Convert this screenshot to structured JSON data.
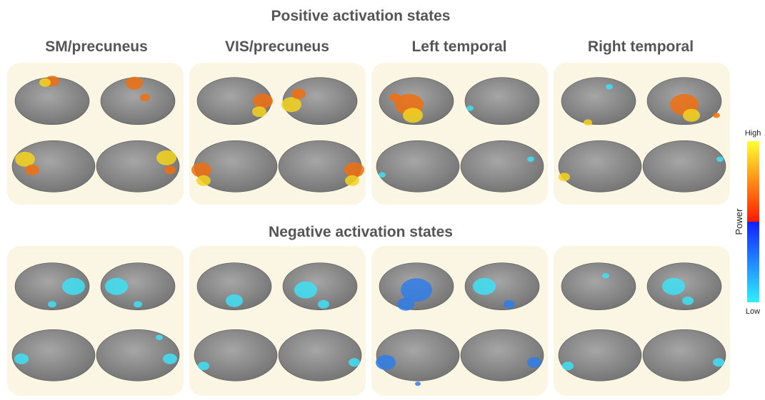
{
  "sections": [
    {
      "title": "Positive activation states",
      "panels": [
        "SM/precuneus",
        "VIS/precuneus",
        "Left temporal",
        "Right temporal"
      ]
    },
    {
      "title": "Negative activation states"
    }
  ],
  "colorbar": {
    "high": "High",
    "low": "Low",
    "label": "Power"
  }
}
